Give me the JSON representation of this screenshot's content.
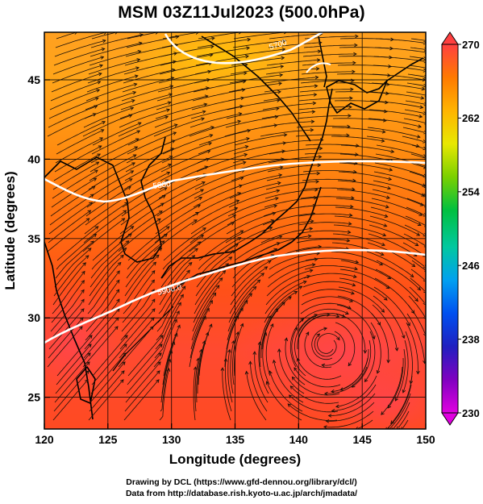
{
  "title": "MSM 03Z11Jul2023 (500.0hPa)",
  "axes": {
    "xlabel": "Longitude (degrees)",
    "ylabel": "Latitude  (degrees)",
    "xlim": [
      120,
      150
    ],
    "ylim": [
      22.5,
      47.5
    ],
    "xticks": [
      "120",
      "125",
      "130",
      "135",
      "140",
      "145",
      "150"
    ],
    "yticks": [
      "25",
      "30",
      "35",
      "40",
      "45"
    ]
  },
  "colorbar": {
    "min": 230,
    "max": 270,
    "labels": [
      "270",
      "262",
      "254",
      "246",
      "238",
      "230"
    ],
    "colors": [
      "#ff4040",
      "#ff7a00",
      "#ffb400",
      "#e8e800",
      "#7ad000",
      "#00c040",
      "#00c8a0",
      "#00a0f0",
      "#0050f0",
      "#2020c0",
      "#8000c0",
      "#e000e0"
    ]
  },
  "contour_labels": [
    "5700",
    "5800",
    "5900.0"
  ],
  "credits": {
    "line1": "Drawing by DCL (https://www.gfd-dennou.org/library/dcl/)",
    "line2": "Data from http://database.rish.kyoto-u.ac.jp/arch/jmadata/"
  }
}
